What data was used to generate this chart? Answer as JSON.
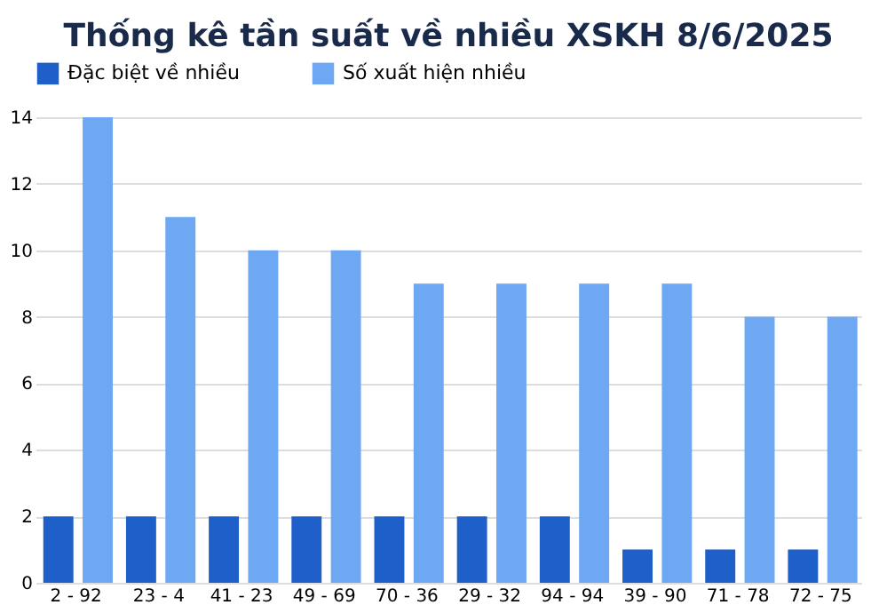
{
  "chart_data": {
    "type": "bar",
    "title": "Thống kê tần suất về nhiều XSKH 8/6/2025",
    "categories": [
      "2 - 92",
      "23 - 4",
      "41 - 23",
      "49 - 69",
      "70 - 36",
      "29 - 32",
      "94 - 94",
      "39 - 90",
      "71 - 78",
      "72 - 75"
    ],
    "series": [
      {
        "name": "Đặc biệt về nhiều",
        "color": "#1f5fc9",
        "values": [
          2,
          2,
          2,
          2,
          2,
          2,
          2,
          1,
          1,
          1
        ]
      },
      {
        "name": "Số xuất hiện nhiều",
        "color": "#6ea8f2",
        "values": [
          14,
          11,
          10,
          10,
          9,
          9,
          9,
          9,
          8,
          8
        ]
      }
    ],
    "ylim": [
      0,
      14
    ],
    "yticks": [
      0,
      2,
      4,
      6,
      8,
      10,
      12,
      14
    ],
    "grid": "y",
    "legend": "top"
  }
}
